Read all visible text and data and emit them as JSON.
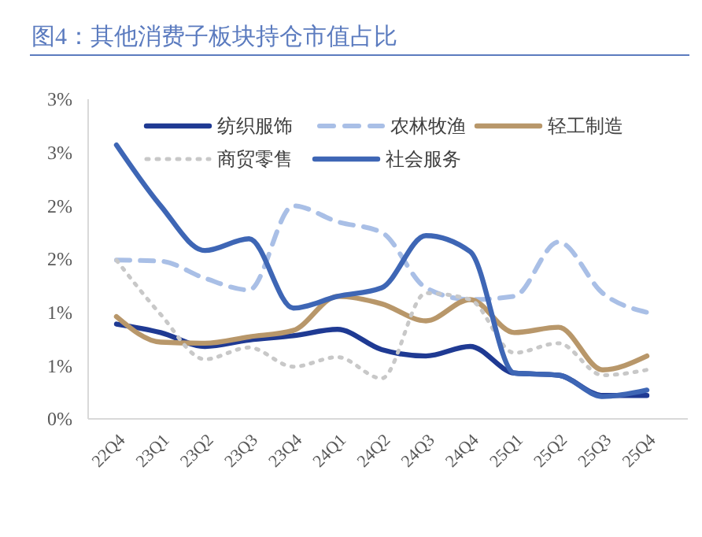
{
  "chart_data": {
    "type": "line",
    "title": "图4：其他消费子板块持仓市值占比",
    "categories": [
      "22Q4",
      "23Q1",
      "23Q2",
      "23Q3",
      "23Q4",
      "24Q1",
      "24Q2",
      "24Q3",
      "24Q4",
      "25Q1",
      "25Q2",
      "25Q3",
      "25Q4"
    ],
    "ylim": [
      0,
      3
    ],
    "yticks": [
      {
        "value": 0,
        "label": "0%"
      },
      {
        "value": 0.5,
        "label": "1%"
      },
      {
        "value": 1,
        "label": "1%"
      },
      {
        "value": 1.5,
        "label": "2%"
      },
      {
        "value": 2,
        "label": "2%"
      },
      {
        "value": 2.5,
        "label": "3%"
      },
      {
        "value": 3,
        "label": "3%"
      }
    ],
    "grid": false,
    "legend": "top",
    "marker": "none",
    "series": [
      {
        "name": "纺织服饰",
        "color": "#1f3a93",
        "line_style": "solid",
        "values": [
          0.89,
          0.81,
          0.68,
          0.74,
          0.78,
          0.84,
          0.65,
          0.59,
          0.68,
          0.43,
          0.41,
          0.22,
          0.22
        ]
      },
      {
        "name": "农林牧渔",
        "color": "#a9bfe6",
        "line_style": "dashed",
        "values": [
          1.49,
          1.48,
          1.32,
          1.21,
          2.0,
          1.85,
          1.75,
          1.23,
          1.12,
          1.15,
          1.66,
          1.18,
          1.0
        ]
      },
      {
        "name": "轻工制造",
        "color": "#b8976a",
        "line_style": "solid",
        "values": [
          0.96,
          0.72,
          0.71,
          0.77,
          0.83,
          1.15,
          1.08,
          0.92,
          1.12,
          0.81,
          0.86,
          0.46,
          0.59
        ]
      },
      {
        "name": "商贸零售",
        "color": "#c8c8c8",
        "line_style": "dotted",
        "values": [
          1.49,
          0.98,
          0.56,
          0.67,
          0.49,
          0.58,
          0.38,
          1.18,
          1.12,
          0.62,
          0.71,
          0.41,
          0.46
        ]
      },
      {
        "name": "社会服务",
        "color": "#3e66b5",
        "line_style": "solid",
        "values": [
          2.57,
          2.0,
          1.58,
          1.69,
          1.04,
          1.15,
          1.23,
          1.72,
          1.57,
          0.43,
          0.41,
          0.21,
          0.27
        ]
      }
    ]
  }
}
